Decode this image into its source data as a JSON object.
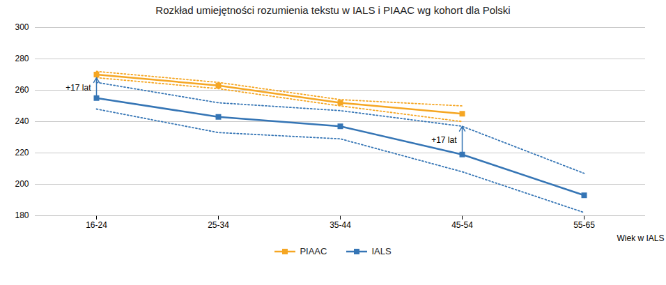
{
  "chart_data": {
    "type": "line",
    "title": "Rozkład umiejętności rozumienia tekstu w IALS i PIAAC wg kohort dla Polski",
    "xlabel": "Wiek w IALS",
    "categories": [
      "16-24",
      "25-34",
      "35-44",
      "45-54",
      "55-65"
    ],
    "series": [
      {
        "name": "PIAAC",
        "color": "#F5A623",
        "marker": "square",
        "values": [
          270,
          263,
          252,
          245,
          null
        ],
        "upper": [
          272,
          265,
          254,
          250,
          null
        ],
        "lower": [
          268,
          261,
          250,
          240,
          null
        ]
      },
      {
        "name": "IALS",
        "color": "#3575B5",
        "marker": "square",
        "values": [
          255,
          243,
          237,
          219,
          193
        ],
        "upper": [
          265,
          252,
          247,
          237,
          207
        ],
        "lower": [
          248,
          233,
          229,
          208,
          182
        ]
      }
    ],
    "annotations": [
      {
        "text": "+17 lat",
        "x": "16-24",
        "y_start": 255,
        "y_end": 268
      },
      {
        "text": "+17 lat",
        "x": "45-54",
        "y_start": 219,
        "y_end": 237
      }
    ],
    "ylim": [
      180,
      300
    ],
    "yticks": [
      180,
      200,
      220,
      240,
      260,
      280,
      300
    ],
    "grid": true,
    "legend": "bottom"
  }
}
